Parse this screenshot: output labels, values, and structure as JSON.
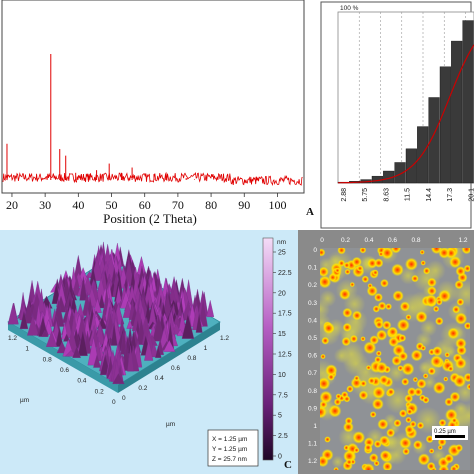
{
  "panel_a": {
    "label": "A",
    "xlabel": "Position (2 Theta)",
    "ticks": [
      "20",
      "30",
      "40",
      "50",
      "60",
      "70",
      "80",
      "90",
      "100"
    ],
    "tick_values": [
      20,
      30,
      40,
      50,
      60,
      70,
      80,
      90,
      100
    ],
    "line_color": "#e00000",
    "chart_data": {
      "type": "line",
      "xlabel": "Position (2 Theta)",
      "xlim": [
        17,
        108
      ],
      "peaks": [
        {
          "x": 18.5,
          "h": 0.32
        },
        {
          "x": 31.7,
          "h": 1.0
        },
        {
          "x": 34.4,
          "h": 0.28
        },
        {
          "x": 36.2,
          "h": 0.23
        },
        {
          "x": 39.2,
          "h": 0.1
        },
        {
          "x": 43.0,
          "h": 0.08
        },
        {
          "x": 45.5,
          "h": 0.12
        },
        {
          "x": 49.3,
          "h": 0.17
        },
        {
          "x": 53.0,
          "h": 0.1
        },
        {
          "x": 56.2,
          "h": 0.14
        },
        {
          "x": 62.8,
          "h": 0.09
        },
        {
          "x": 66.4,
          "h": 0.1
        },
        {
          "x": 72.5,
          "h": 0.06
        },
        {
          "x": 75.0,
          "h": 0.05
        }
      ]
    }
  },
  "panel_b": {
    "top_label": "100 %",
    "ticks": [
      "2.88",
      "5.75",
      "8.63",
      "11.5",
      "14.4",
      "17.3",
      "20.1"
    ],
    "bar_color": "#3a3a3a",
    "curve_color": "#cc0000",
    "chart_data": {
      "type": "bar",
      "categories": [
        "2.88",
        "5.75",
        "8.63",
        "11.5",
        "14.4",
        "17.3",
        "20.1"
      ],
      "bars": [
        0.5,
        1,
        2,
        4,
        7,
        12,
        20,
        33,
        50,
        68,
        83,
        95
      ],
      "ylim": [
        0,
        100
      ]
    }
  },
  "panel_c": {
    "label": "C",
    "unit": "nm",
    "scale_ticks": [
      "25",
      "22.5",
      "20",
      "17.5",
      "15",
      "12.5",
      "10",
      "7.5",
      "5",
      "2.5",
      "0"
    ],
    "readout": [
      "X = 1.25 µm",
      "Y = 1.25 µm",
      "Z = 25.7 nm"
    ],
    "axis_a_ticks": [
      "0",
      "0.2",
      "0.4",
      "0.6",
      "0.8",
      "1",
      "1.2"
    ],
    "axis_b_ticks": [
      "0",
      "0.2",
      "0.4",
      "0.6",
      "0.8",
      "1",
      "1.2"
    ],
    "axis_unit": "µm",
    "surface_color": "#7a2d8c"
  },
  "panel_d": {
    "top_ticks": [
      "0",
      "0.2",
      "0.4",
      "0.6",
      "0.8",
      "1",
      "1.2"
    ],
    "left_ticks": [
      "0",
      "0.1",
      "0.2",
      "0.3",
      "0.4",
      "0.5",
      "0.6",
      "0.7",
      "0.8",
      "0.9",
      "1",
      "1.1",
      "1.2"
    ],
    "scalebar": "0.25 µm"
  }
}
